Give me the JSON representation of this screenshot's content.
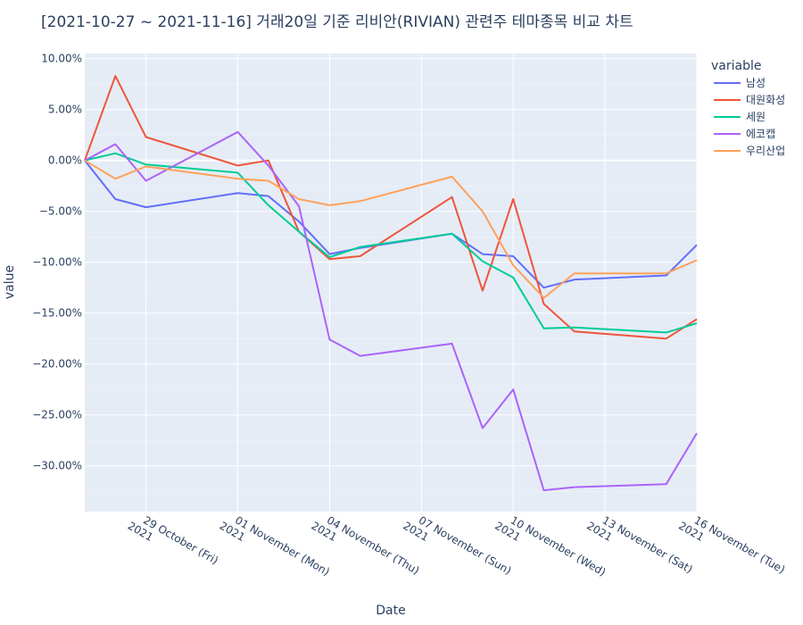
{
  "chart_data": {
    "type": "line",
    "title": "[2021-10-27 ~ 2021-11-16] 거래20일 기준 리비안(RIVIAN) 관련주 테마종목 비교 차트",
    "xlabel": "Date",
    "ylabel": "value",
    "legend_title": "variable",
    "legend_position": "top-right",
    "grid": true,
    "colors": {
      "plot_bg": "#e5ecf6",
      "grid": "#ffffff",
      "text": "#2a3f5f"
    },
    "xlim": [
      "2021-10-27",
      "2021-11-16"
    ],
    "ylim": [
      -34.5,
      10.5
    ],
    "x_ticks": [
      {
        "date": "2021-10-29",
        "line1": "29 October (Fri)",
        "line2": "2021"
      },
      {
        "date": "2021-11-01",
        "line1": "01 November (Mon)",
        "line2": "2021"
      },
      {
        "date": "2021-11-04",
        "line1": "04 November (Thu)",
        "line2": "2021"
      },
      {
        "date": "2021-11-07",
        "line1": "07 November (Sun)",
        "line2": "2021"
      },
      {
        "date": "2021-11-10",
        "line1": "10 November (Wed)",
        "line2": "2021"
      },
      {
        "date": "2021-11-13",
        "line1": "13 November (Sat)",
        "line2": "2021"
      },
      {
        "date": "2021-11-16",
        "line1": "16 November (Tue)",
        "line2": "2021"
      }
    ],
    "y_ticks": [
      {
        "value": 10,
        "label": "10.00%"
      },
      {
        "value": 5,
        "label": "5.00%"
      },
      {
        "value": 0,
        "label": "0.00%"
      },
      {
        "value": -5,
        "label": "−5.00%"
      },
      {
        "value": -10,
        "label": "−10.00%"
      },
      {
        "value": -15,
        "label": "−15.00%"
      },
      {
        "value": -20,
        "label": "−20.00%"
      },
      {
        "value": -25,
        "label": "−25.00%"
      },
      {
        "value": -30,
        "label": "−30.00%"
      }
    ],
    "x": [
      "2021-10-27",
      "2021-10-28",
      "2021-10-29",
      "2021-11-01",
      "2021-11-02",
      "2021-11-03",
      "2021-11-04",
      "2021-11-05",
      "2021-11-08",
      "2021-11-09",
      "2021-11-10",
      "2021-11-11",
      "2021-11-12",
      "2021-11-15",
      "2021-11-16"
    ],
    "series": [
      {
        "name": "남성",
        "color": "#636efa",
        "values": [
          0,
          -3.8,
          -4.6,
          -3.2,
          -3.5,
          -6.0,
          -9.2,
          -8.6,
          -7.2,
          -9.2,
          -9.4,
          -12.5,
          -11.7,
          -11.3,
          -8.3
        ]
      },
      {
        "name": "대원화성",
        "color": "#ef553b",
        "values": [
          0,
          8.3,
          2.3,
          -0.5,
          0.0,
          -7.0,
          -9.7,
          -9.4,
          -3.6,
          -12.8,
          -3.8,
          -14.1,
          -16.8,
          -17.5,
          -15.6
        ]
      },
      {
        "name": "세원",
        "color": "#00cc96",
        "values": [
          0,
          0.7,
          -0.4,
          -1.2,
          -4.4,
          -7.0,
          -9.5,
          -8.5,
          -7.2,
          -9.9,
          -11.5,
          -16.5,
          -16.4,
          -16.9,
          -16.0
        ]
      },
      {
        "name": "에코캡",
        "color": "#ab63fa",
        "values": [
          0,
          1.6,
          -2.0,
          2.8,
          -0.5,
          -4.5,
          -17.6,
          -19.2,
          -18.0,
          -26.3,
          -22.5,
          -32.4,
          -32.1,
          -31.8,
          -26.8
        ]
      },
      {
        "name": "우리산업",
        "color": "#ffa15a",
        "values": [
          0,
          -1.8,
          -0.6,
          -1.8,
          -2.0,
          -3.8,
          -4.4,
          -4.0,
          -1.6,
          -5.0,
          -10.3,
          -13.5,
          -11.1,
          -11.1,
          -9.8
        ]
      }
    ]
  }
}
